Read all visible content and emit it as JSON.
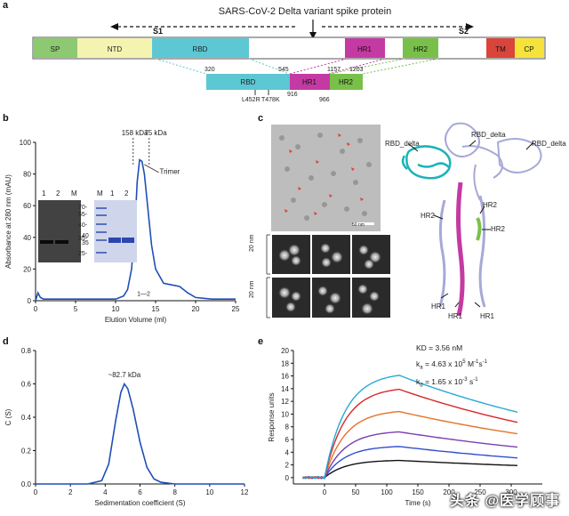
{
  "panels": {
    "a": "a",
    "b": "b",
    "c": "c",
    "d": "d",
    "e": "e"
  },
  "panel_a": {
    "title": "SARS-CoV-2 Delta variant spike protein",
    "s1": "S1",
    "s2": "S2",
    "domains": [
      {
        "name": "SP",
        "color": "#8cc970"
      },
      {
        "name": "NTD",
        "color": "#f5f3b0"
      },
      {
        "name": "RBD",
        "color": "#5dc7d3"
      },
      {
        "name": "HR1",
        "color": "#c43aa3"
      },
      {
        "name": "HR2",
        "color": "#79c04a"
      },
      {
        "name": "TM",
        "color": "#d9453b"
      },
      {
        "name": "CP",
        "color": "#f5e33c"
      }
    ],
    "construct": [
      {
        "name": "RBD",
        "color": "#5dc7d3"
      },
      {
        "name": "HR1",
        "color": "#c43aa3"
      },
      {
        "name": "HR2",
        "color": "#79c04a"
      }
    ],
    "residues": {
      "r320": "320",
      "r545": "545",
      "r1157": "1157",
      "r1203": "1203",
      "r916": "916",
      "r966": "966"
    },
    "mutations": {
      "m1": "L452R",
      "m2": "T478K"
    }
  },
  "panel_b": {
    "annotations": {
      "kda158": "158 kDa",
      "kda75": "75 kDa",
      "trimer": "Trimer",
      "fractions": "1—2"
    },
    "gel1": {
      "lanes": [
        "1",
        "2",
        "M"
      ],
      "marker_top": "40",
      "marker_bottom": "35"
    },
    "gel2": {
      "lanes": [
        "M",
        "1",
        "2"
      ],
      "markers": [
        "70",
        "55",
        "40",
        "35",
        "25"
      ],
      "marker_tick": "-"
    }
  },
  "panel_c": {
    "scale": "50 nm",
    "side_labels": [
      "20 nm",
      "20 nm"
    ],
    "labels": {
      "rbd1": "RBD_delta",
      "rbd2": "RBD_delta",
      "rbd3": "RBD_delta",
      "hr2a": "HR2",
      "hr2b": "HR2",
      "hr2c": "HR2",
      "hr1a": "HR1",
      "hr1b": "HR1",
      "hr1c": "HR1"
    }
  },
  "panel_e_text": {
    "kd": "KD = 3.56 nM",
    "ka_prefix": "k",
    "ka_sub": "a",
    "ka_val": " = 4.63 x 10",
    "ka_sup": "5",
    "ka_unit": " M",
    "ka_unit_sup": "-1",
    "ka_s": "s",
    "ka_s_sup": "-1",
    "kd2_prefix": "k",
    "kd2_sub": "d",
    "kd2_val": " = 1.65 x 10",
    "kd2_sup": "-3",
    "kd2_s": " s",
    "kd2_s_sup": "-1"
  },
  "watermark": "头条 @医学顾事",
  "chart_data": [
    {
      "id": "b",
      "type": "line",
      "xlabel": "Elution Volume (ml)",
      "ylabel": "Absorbance at 280 nm (mAU)",
      "xlim": [
        0,
        25
      ],
      "ylim": [
        0,
        100
      ],
      "xticks": [
        0,
        5,
        10,
        15,
        20,
        25
      ],
      "yticks": [
        0,
        20,
        40,
        60,
        80,
        100
      ],
      "series": [
        {
          "name": "A280",
          "color": "#1f4fb5",
          "x": [
            0,
            0.3,
            0.6,
            1,
            2,
            4,
            6,
            8,
            9,
            10,
            11,
            11.5,
            12,
            12.4,
            12.7,
            13,
            13.3,
            13.6,
            14,
            14.5,
            15,
            16,
            17,
            18,
            19,
            20,
            22,
            25
          ],
          "y": [
            0,
            5,
            2,
            1,
            1,
            1,
            1,
            1,
            1,
            1,
            3,
            7,
            20,
            45,
            75,
            89,
            88,
            80,
            60,
            35,
            20,
            11,
            10,
            9,
            5,
            2,
            1,
            1
          ]
        }
      ]
    },
    {
      "id": "d",
      "type": "line",
      "xlabel": "Sedimentation coefficient (S)",
      "ylabel": "C (S)",
      "annotation": "~82.7 kDa",
      "xlim": [
        0,
        12
      ],
      "ylim": [
        0,
        0.8
      ],
      "xticks": [
        0,
        2,
        4,
        6,
        8,
        10,
        12
      ],
      "yticks": [
        0.0,
        0.2,
        0.4,
        0.6,
        0.8
      ],
      "ytick_labels": [
        "0.0",
        "0.2",
        "0.4",
        "0.6",
        "0.8"
      ],
      "series": [
        {
          "name": "c(s)",
          "color": "#1f4fb5",
          "x": [
            0,
            1,
            2,
            3,
            3.8,
            4.2,
            4.6,
            4.9,
            5.1,
            5.3,
            5.6,
            6.0,
            6.4,
            6.8,
            7.2,
            8,
            10,
            12
          ],
          "y": [
            0,
            0,
            0,
            0,
            0.02,
            0.12,
            0.38,
            0.55,
            0.6,
            0.57,
            0.45,
            0.25,
            0.1,
            0.03,
            0.01,
            0,
            0,
            0
          ]
        }
      ]
    },
    {
      "id": "e",
      "type": "line",
      "xlabel": "Time (s)",
      "ylabel": "Response units",
      "xlim": [
        -50,
        350
      ],
      "ylim": [
        -1,
        20
      ],
      "xticks": [
        0,
        50,
        100,
        150,
        200,
        250,
        300
      ],
      "yticks": [
        0,
        2,
        4,
        6,
        8,
        10,
        12,
        14,
        16,
        18,
        20
      ],
      "association_end": 120,
      "series": [
        {
          "name": "s1",
          "color": "#111111",
          "peak": 2.7,
          "end": 1.9
        },
        {
          "name": "s2",
          "color": "#2f4fd0",
          "peak": 4.9,
          "end": 3.1
        },
        {
          "name": "s3",
          "color": "#7a3fb0",
          "peak": 7.2,
          "end": 4.8
        },
        {
          "name": "s4",
          "color": "#e5732a",
          "peak": 10.4,
          "end": 6.9
        },
        {
          "name": "s5",
          "color": "#d6282a",
          "peak": 13.9,
          "end": 8.7
        },
        {
          "name": "s6",
          "color": "#27a9d6",
          "peak": 16.1,
          "end": 10.3
        }
      ]
    }
  ]
}
